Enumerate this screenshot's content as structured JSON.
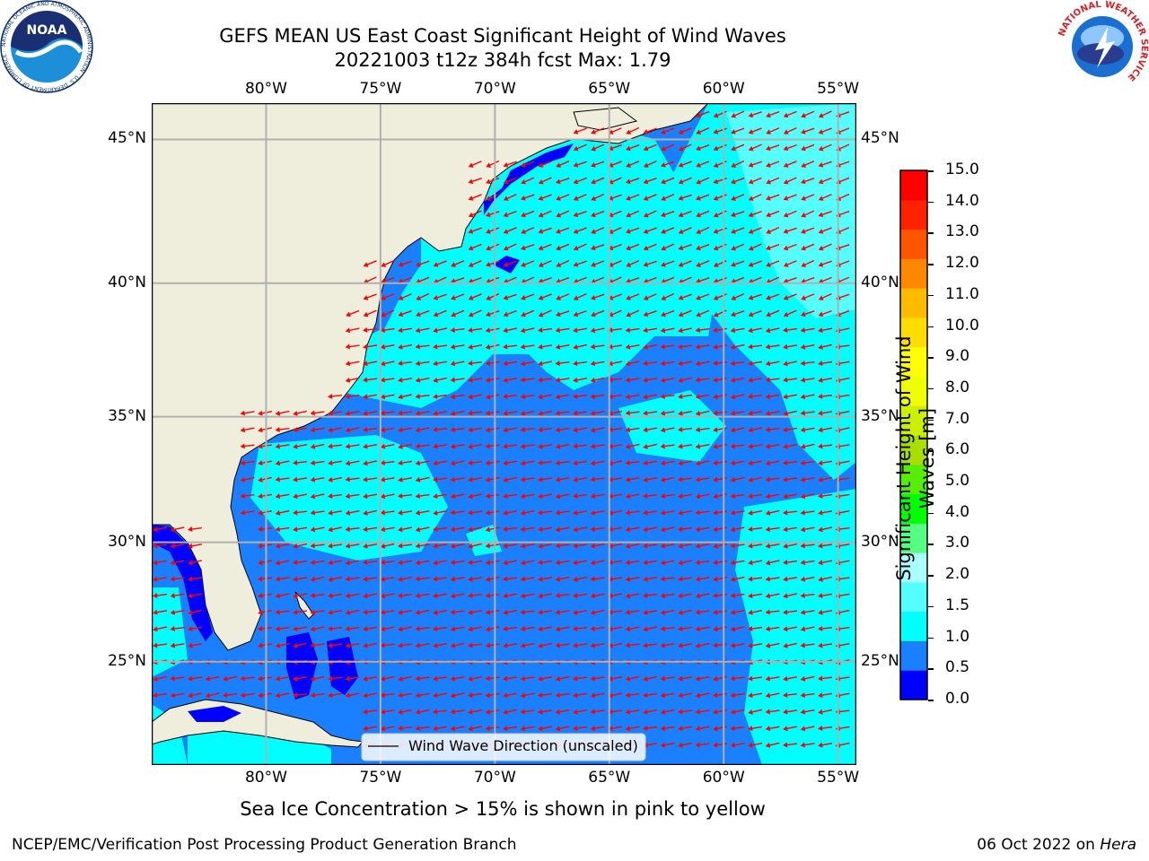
{
  "title": {
    "line1": "GEFS MEAN US East Coast Significant Height of Wind Waves",
    "line2": "20221003 t12z 384h fcst   Max: 1.79"
  },
  "map": {
    "lon_ticks": [
      "80°W",
      "75°W",
      "70°W",
      "65°W",
      "60°W",
      "55°W"
    ],
    "lat_ticks": [
      "45°N",
      "40°N",
      "35°N",
      "30°N",
      "25°N"
    ],
    "lon_values": [
      -80,
      -75,
      -70,
      -65,
      -60,
      -55
    ],
    "lat_values": [
      45,
      40,
      35,
      30,
      25
    ],
    "lon_range": [
      -85,
      -54.2
    ],
    "lat_range": [
      20.5,
      46.2
    ],
    "legend_label": "Wind Wave Direction (unscaled)",
    "colors": {
      "land": "#efeedd",
      "ocean_low": "#1a80ff",
      "ocean_mid": "#00ffff",
      "ocean_high": "#55ffff",
      "coast_shallow": "#0000ff",
      "arrow": "#ff0000",
      "grid": "#b0b0b0"
    }
  },
  "colorbar": {
    "label_line1": "Significant Height of Wind",
    "label_line2": "Waves [m]",
    "ticks": [
      "0.0",
      "0.5",
      "1.0",
      "1.5",
      "2.0",
      "3.0",
      "4.0",
      "5.0",
      "6.0",
      "7.0",
      "8.0",
      "9.0",
      "10.0",
      "11.0",
      "12.0",
      "13.0",
      "14.0",
      "15.0"
    ],
    "colors": [
      "#0000ff",
      "#1a80ff",
      "#00ffff",
      "#55ffff",
      "#aaffff",
      "#55ff80",
      "#00ff00",
      "#55ee00",
      "#aadd00",
      "#ccee00",
      "#eeff00",
      "#ffff00",
      "#ffdd00",
      "#ffbb00",
      "#ff8800",
      "#ff5500",
      "#ff2200",
      "#ff0000"
    ]
  },
  "note": "Sea Ice Concentration > 15% is shown in pink to yellow",
  "footer": {
    "left": "NCEP/EMC/Verification Post Processing Product Generation Branch",
    "right_date": "06 Oct 2022 on ",
    "right_host": "Hera"
  },
  "logos": {
    "noaa_text": "NOAA",
    "noaa_ring": "NATIONAL OCEANIC AND ATMOSPHERIC ADMINISTRATION · U.S. DEPARTMENT OF COMMERCE ·",
    "nws_ring": "NATIONAL WEATHER SERVICE"
  }
}
